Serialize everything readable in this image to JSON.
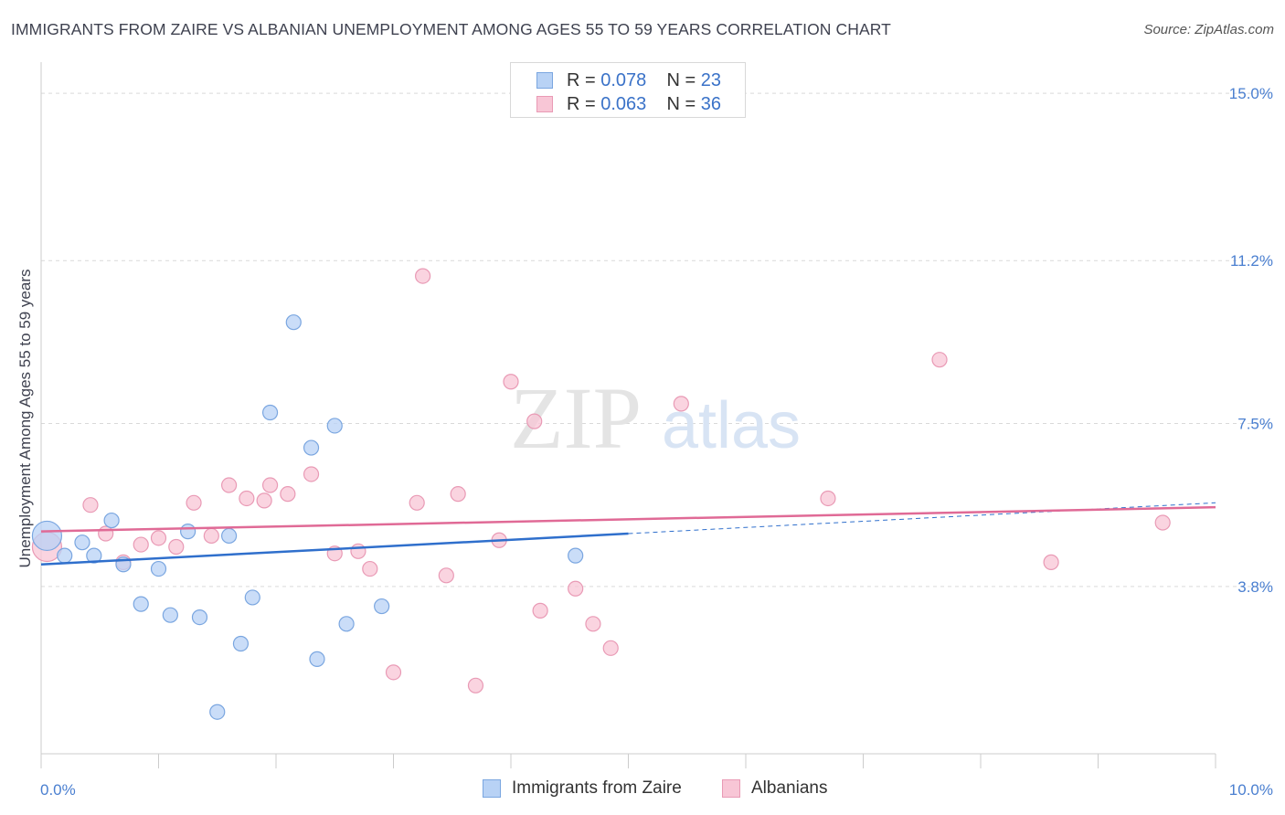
{
  "header": {
    "title": "IMMIGRANTS FROM ZAIRE VS ALBANIAN UNEMPLOYMENT AMONG AGES 55 TO 59 YEARS CORRELATION CHART",
    "source": "Source: ZipAtlas.com"
  },
  "legend": {
    "rows": [
      {
        "r_label": "R =",
        "r_value": "0.078",
        "n_label": "N =",
        "n_value": "23"
      },
      {
        "r_label": "R =",
        "r_value": "0.063",
        "n_label": "N =",
        "n_value": "36"
      }
    ]
  },
  "bottom_legend": {
    "series1": "Immigrants from Zaire",
    "series2": "Albanians"
  },
  "watermark": {
    "zip": "ZIP",
    "atlas": "atlas"
  },
  "colors": {
    "zaire_fill": "#b8d2f5",
    "zaire_stroke": "#7aa6e0",
    "zaire_line": "#2f6fcc",
    "albanian_fill": "#f8c6d6",
    "albanian_stroke": "#e99ab5",
    "albanian_line": "#e06a96",
    "tick_text": "#4a7fd0",
    "grid": "#d9d9d9"
  },
  "chart_data": {
    "type": "scatter",
    "title": "IMMIGRANTS FROM ZAIRE VS ALBANIAN UNEMPLOYMENT AMONG AGES 55 TO 59 YEARS CORRELATION CHART",
    "xlabel": "",
    "ylabel": "Unemployment Among Ages 55 to 59 years",
    "xlim": [
      0,
      10
    ],
    "ylim": [
      0,
      15.5
    ],
    "x_tick_labels": [
      "0.0%",
      "10.0%"
    ],
    "y_ticks": [
      3.8,
      7.5,
      11.2,
      15.0
    ],
    "y_tick_labels": [
      "3.8%",
      "7.5%",
      "11.2%",
      "15.0%"
    ],
    "grid": "horizontal dashed",
    "legend_position": "top-center",
    "series": [
      {
        "name": "Immigrants from Zaire",
        "color": "#b8d2f5",
        "trend": {
          "x": [
            0,
            5.0
          ],
          "y": [
            4.3,
            5.0
          ],
          "dashed_extension_to": [
            10,
            5.7
          ]
        },
        "points": [
          {
            "x": 0.05,
            "y": 4.95,
            "large": true
          },
          {
            "x": 0.2,
            "y": 4.5
          },
          {
            "x": 0.35,
            "y": 4.8
          },
          {
            "x": 0.45,
            "y": 4.5
          },
          {
            "x": 0.6,
            "y": 5.3
          },
          {
            "x": 0.7,
            "y": 4.3
          },
          {
            "x": 0.85,
            "y": 3.4
          },
          {
            "x": 1.0,
            "y": 4.2
          },
          {
            "x": 1.1,
            "y": 3.15
          },
          {
            "x": 1.25,
            "y": 5.05
          },
          {
            "x": 1.35,
            "y": 3.1
          },
          {
            "x": 1.5,
            "y": 0.95
          },
          {
            "x": 1.6,
            "y": 4.95
          },
          {
            "x": 1.7,
            "y": 2.5
          },
          {
            "x": 1.8,
            "y": 3.55
          },
          {
            "x": 1.95,
            "y": 7.75
          },
          {
            "x": 2.15,
            "y": 9.8
          },
          {
            "x": 2.3,
            "y": 6.95
          },
          {
            "x": 2.35,
            "y": 2.15
          },
          {
            "x": 2.5,
            "y": 7.45
          },
          {
            "x": 2.6,
            "y": 2.95
          },
          {
            "x": 2.9,
            "y": 3.35
          },
          {
            "x": 4.55,
            "y": 4.5
          }
        ]
      },
      {
        "name": "Albanians",
        "color": "#f8c6d6",
        "trend": {
          "x": [
            0,
            10
          ],
          "y": [
            5.05,
            5.6
          ]
        },
        "points": [
          {
            "x": 0.05,
            "y": 4.7,
            "large": true
          },
          {
            "x": 0.42,
            "y": 5.65
          },
          {
            "x": 0.55,
            "y": 5.0
          },
          {
            "x": 0.7,
            "y": 4.35
          },
          {
            "x": 0.85,
            "y": 4.75
          },
          {
            "x": 1.0,
            "y": 4.9
          },
          {
            "x": 1.15,
            "y": 4.7
          },
          {
            "x": 1.3,
            "y": 5.7
          },
          {
            "x": 1.45,
            "y": 4.95
          },
          {
            "x": 1.6,
            "y": 6.1
          },
          {
            "x": 1.75,
            "y": 5.8
          },
          {
            "x": 1.9,
            "y": 5.75
          },
          {
            "x": 1.95,
            "y": 6.1
          },
          {
            "x": 2.1,
            "y": 5.9
          },
          {
            "x": 2.3,
            "y": 6.35
          },
          {
            "x": 2.5,
            "y": 4.55
          },
          {
            "x": 2.7,
            "y": 4.6
          },
          {
            "x": 2.8,
            "y": 4.2
          },
          {
            "x": 3.0,
            "y": 1.85
          },
          {
            "x": 3.2,
            "y": 5.7
          },
          {
            "x": 3.25,
            "y": 10.85
          },
          {
            "x": 3.45,
            "y": 4.05
          },
          {
            "x": 3.55,
            "y": 5.9
          },
          {
            "x": 3.7,
            "y": 1.55
          },
          {
            "x": 3.9,
            "y": 4.85
          },
          {
            "x": 4.0,
            "y": 8.45
          },
          {
            "x": 4.2,
            "y": 7.55
          },
          {
            "x": 4.25,
            "y": 3.25
          },
          {
            "x": 4.55,
            "y": 3.75
          },
          {
            "x": 4.7,
            "y": 2.95
          },
          {
            "x": 4.85,
            "y": 2.4
          },
          {
            "x": 5.45,
            "y": 7.95
          },
          {
            "x": 6.7,
            "y": 5.8
          },
          {
            "x": 7.65,
            "y": 8.95
          },
          {
            "x": 8.6,
            "y": 4.35
          },
          {
            "x": 9.55,
            "y": 5.25
          }
        ]
      }
    ]
  }
}
